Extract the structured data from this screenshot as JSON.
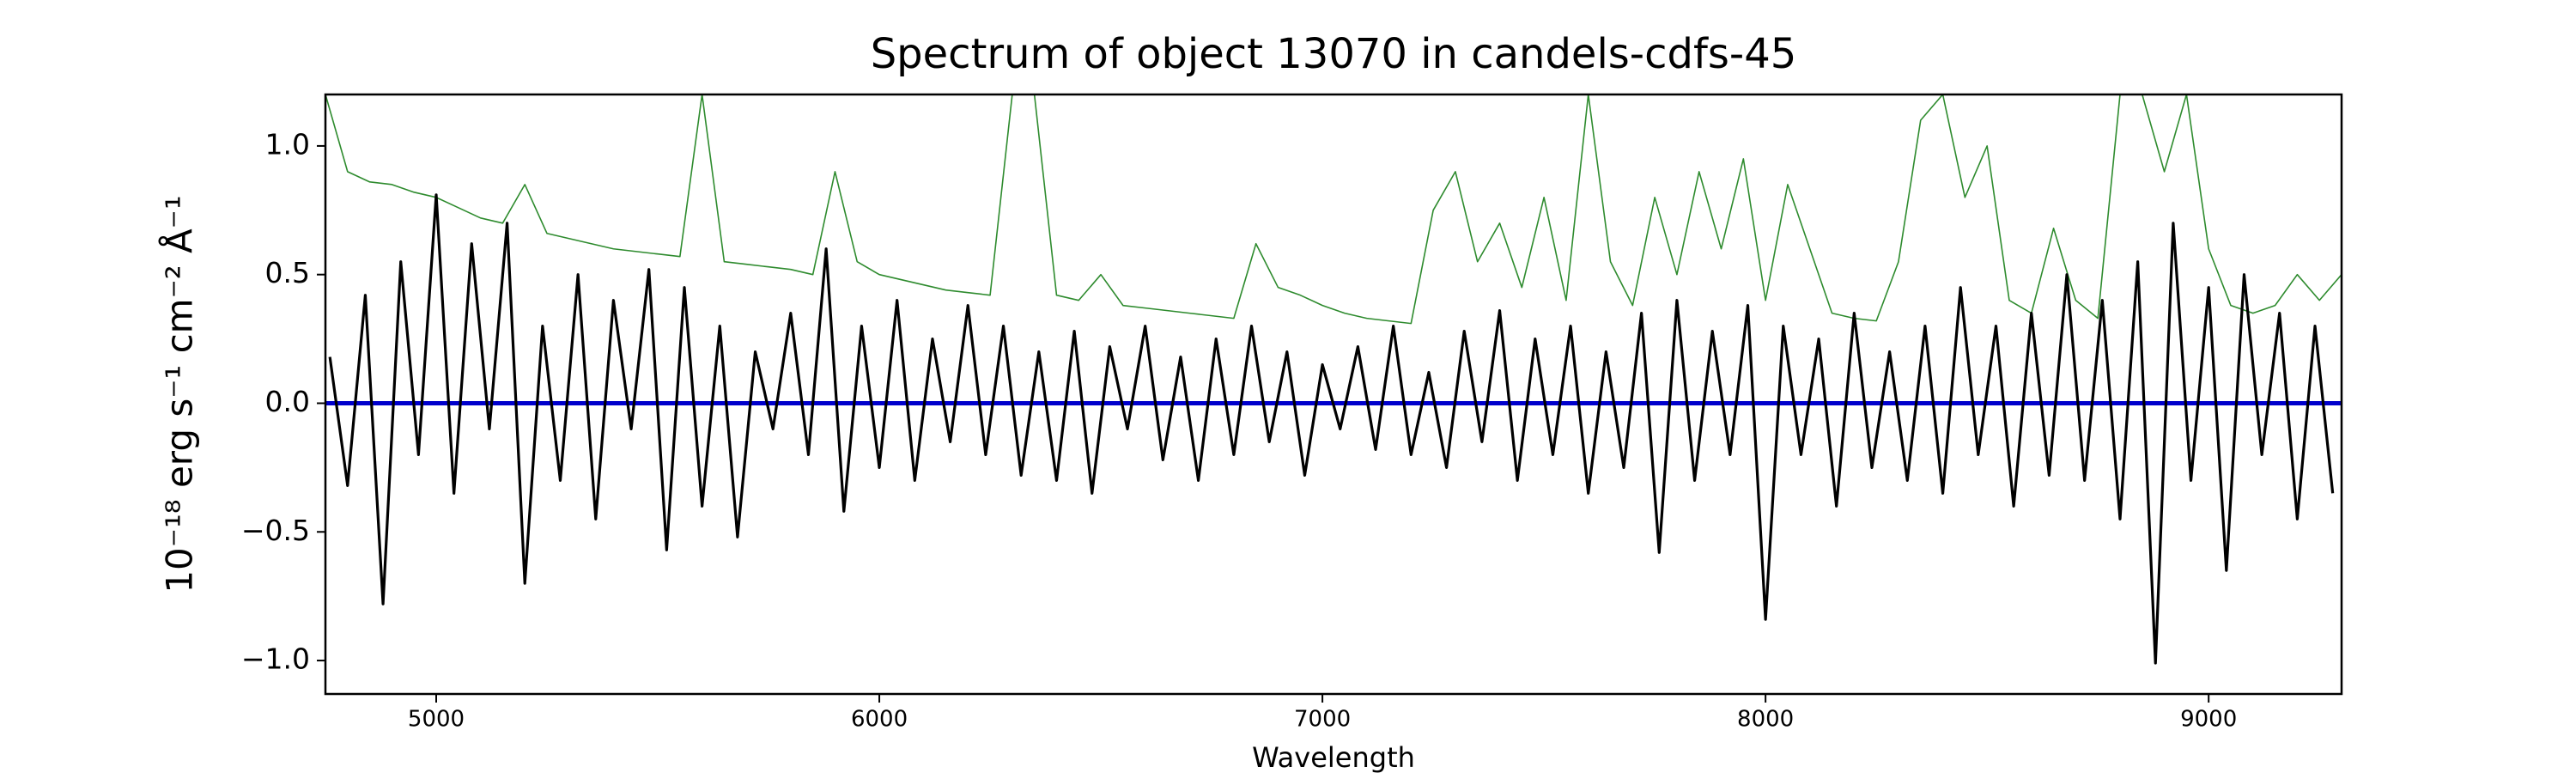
{
  "chart_data": {
    "type": "line",
    "title": "Spectrum of object 13070 in candels-cdfs-45",
    "xlabel": "Wavelength",
    "ylabel": "10⁻¹⁸ erg s⁻¹ cm⁻² Å⁻¹",
    "xlim": [
      4750,
      9300
    ],
    "ylim": [
      -1.13,
      1.2
    ],
    "xticks": [
      5000,
      6000,
      7000,
      8000,
      9000
    ],
    "yticks": [
      {
        "value": -1.0,
        "label": "−1.0"
      },
      {
        "value": -0.5,
        "label": "−0.5"
      },
      {
        "value": 0.0,
        "label": "0.0"
      },
      {
        "value": 0.5,
        "label": "0.5"
      },
      {
        "value": 1.0,
        "label": "1.0"
      }
    ],
    "series": [
      {
        "color": "#2e8b2e",
        "width": 1.6,
        "x": [
          4750,
          4800,
          4850,
          4900,
          4950,
          5000,
          5050,
          5100,
          5150,
          5200,
          5250,
          5300,
          5350,
          5400,
          5450,
          5500,
          5550,
          5600,
          5650,
          5700,
          5750,
          5800,
          5850,
          5900,
          5950,
          6000,
          6050,
          6100,
          6150,
          6200,
          6250,
          6300,
          6350,
          6400,
          6450,
          6500,
          6550,
          6600,
          6650,
          6700,
          6750,
          6800,
          6850,
          6900,
          6950,
          7000,
          7050,
          7100,
          7150,
          7200,
          7250,
          7300,
          7350,
          7400,
          7450,
          7500,
          7550,
          7600,
          7650,
          7700,
          7750,
          7800,
          7850,
          7900,
          7950,
          8000,
          8050,
          8100,
          8150,
          8200,
          8250,
          8300,
          8350,
          8400,
          8450,
          8500,
          8550,
          8600,
          8650,
          8700,
          8750,
          8800,
          8850,
          8900,
          8950,
          9000,
          9050,
          9100,
          9150,
          9200,
          9250,
          9300
        ],
        "values": [
          1.2,
          0.9,
          0.86,
          0.85,
          0.82,
          0.8,
          0.76,
          0.72,
          0.7,
          0.85,
          0.66,
          0.64,
          0.62,
          0.6,
          0.59,
          0.58,
          0.57,
          1.2,
          0.55,
          0.54,
          0.53,
          0.52,
          0.5,
          0.9,
          0.55,
          0.5,
          0.48,
          0.46,
          0.44,
          0.43,
          0.42,
          1.2,
          1.2,
          0.42,
          0.4,
          0.5,
          0.38,
          0.37,
          0.36,
          0.35,
          0.34,
          0.33,
          0.62,
          0.45,
          0.42,
          0.38,
          0.35,
          0.33,
          0.32,
          0.31,
          0.75,
          0.9,
          0.55,
          0.7,
          0.45,
          0.8,
          0.4,
          1.2,
          0.55,
          0.38,
          0.8,
          0.5,
          0.9,
          0.6,
          0.95,
          0.4,
          0.85,
          0.6,
          0.35,
          0.33,
          0.32,
          0.55,
          1.1,
          1.2,
          0.8,
          1.0,
          0.4,
          0.35,
          0.68,
          0.4,
          0.33,
          1.2,
          1.2,
          0.9,
          1.2,
          0.6,
          0.38,
          0.35,
          0.38,
          0.5,
          0.4,
          0.5
        ]
      },
      {
        "color": "#0000cc",
        "width": 5,
        "x": [
          4750,
          9300
        ],
        "values": [
          0,
          0
        ]
      },
      {
        "color": "#000000",
        "width": 3.2,
        "x": [
          4760,
          4800,
          4840,
          4880,
          4920,
          4960,
          5000,
          5040,
          5080,
          5120,
          5160,
          5200,
          5240,
          5280,
          5320,
          5360,
          5400,
          5440,
          5480,
          5520,
          5560,
          5600,
          5640,
          5680,
          5720,
          5760,
          5800,
          5840,
          5880,
          5920,
          5960,
          6000,
          6040,
          6080,
          6120,
          6160,
          6200,
          6240,
          6280,
          6320,
          6360,
          6400,
          6440,
          6480,
          6520,
          6560,
          6600,
          6640,
          6680,
          6720,
          6760,
          6800,
          6840,
          6880,
          6920,
          6960,
          7000,
          7040,
          7080,
          7120,
          7160,
          7200,
          7240,
          7280,
          7320,
          7360,
          7400,
          7440,
          7480,
          7520,
          7560,
          7600,
          7640,
          7680,
          7720,
          7760,
          7800,
          7840,
          7880,
          7920,
          7960,
          8000,
          8040,
          8080,
          8120,
          8160,
          8200,
          8240,
          8280,
          8320,
          8360,
          8400,
          8440,
          8480,
          8520,
          8560,
          8600,
          8640,
          8680,
          8720,
          8760,
          8800,
          8840,
          8880,
          8920,
          8960,
          9000,
          9040,
          9080,
          9120,
          9160,
          9200,
          9240,
          9280
        ],
        "values": [
          0.18,
          -0.32,
          0.42,
          -0.78,
          0.55,
          -0.2,
          0.81,
          -0.35,
          0.62,
          -0.1,
          0.7,
          -0.7,
          0.3,
          -0.3,
          0.5,
          -0.45,
          0.4,
          -0.1,
          0.52,
          -0.57,
          0.45,
          -0.4,
          0.3,
          -0.52,
          0.2,
          -0.1,
          0.35,
          -0.2,
          0.6,
          -0.42,
          0.3,
          -0.25,
          0.4,
          -0.3,
          0.25,
          -0.15,
          0.38,
          -0.2,
          0.3,
          -0.28,
          0.2,
          -0.3,
          0.28,
          -0.35,
          0.22,
          -0.1,
          0.3,
          -0.22,
          0.18,
          -0.3,
          0.25,
          -0.2,
          0.3,
          -0.15,
          0.2,
          -0.28,
          0.15,
          -0.1,
          0.22,
          -0.18,
          0.3,
          -0.2,
          0.12,
          -0.25,
          0.28,
          -0.15,
          0.36,
          -0.3,
          0.25,
          -0.2,
          0.3,
          -0.35,
          0.2,
          -0.25,
          0.35,
          -0.58,
          0.4,
          -0.3,
          0.28,
          -0.2,
          0.38,
          -0.84,
          0.3,
          -0.2,
          0.25,
          -0.4,
          0.35,
          -0.25,
          0.2,
          -0.3,
          0.3,
          -0.35,
          0.45,
          -0.2,
          0.3,
          -0.4,
          0.35,
          -0.28,
          0.5,
          -0.3,
          0.4,
          -0.45,
          0.55,
          -1.01,
          0.7,
          -0.3,
          0.45,
          -0.65,
          0.5,
          -0.2,
          0.35,
          -0.45,
          0.3,
          -0.35
        ]
      }
    ]
  }
}
